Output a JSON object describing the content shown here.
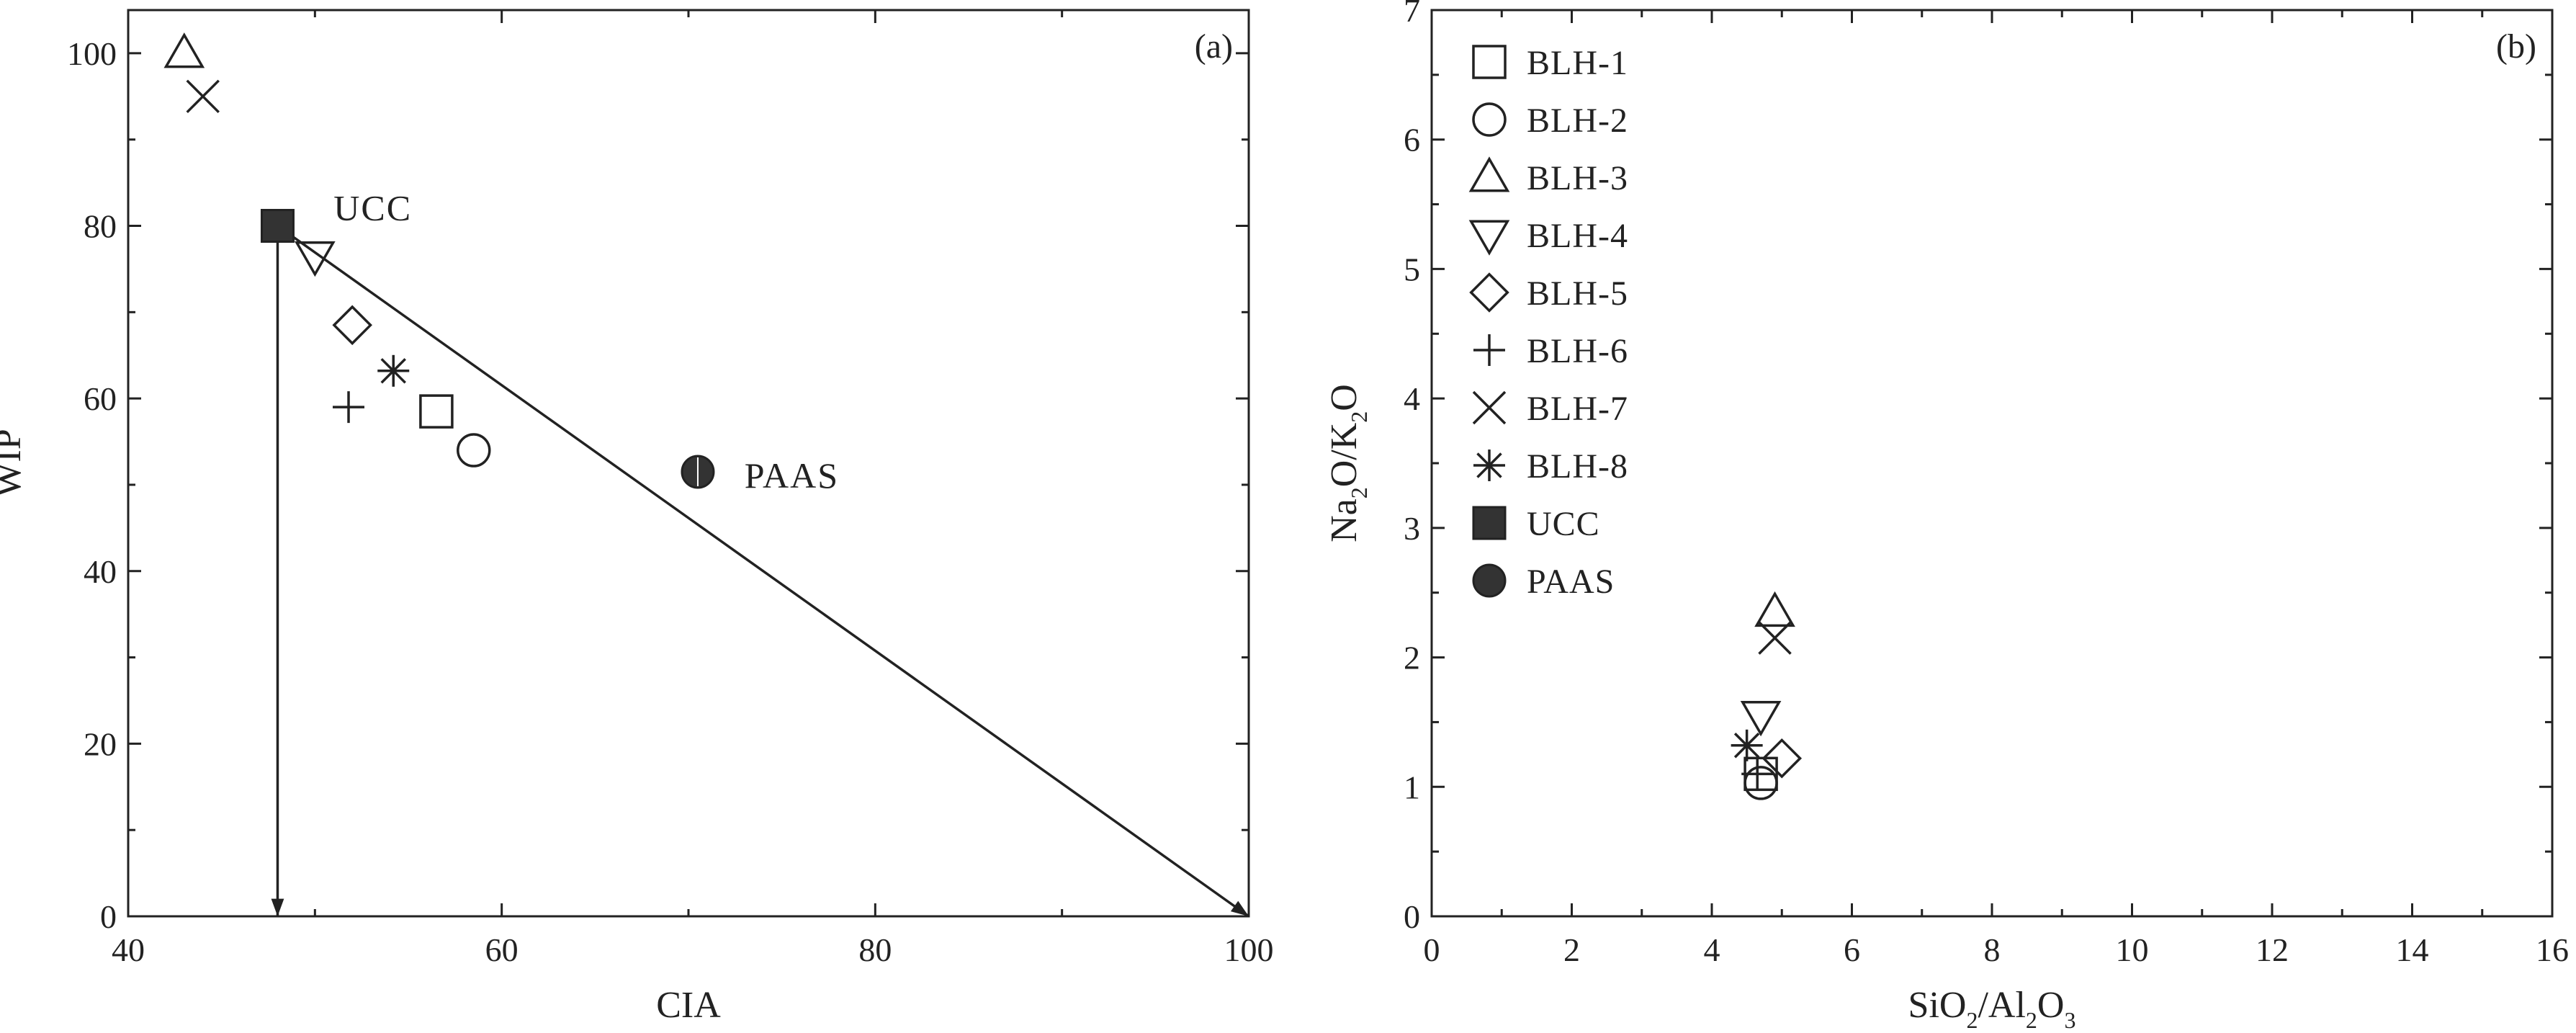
{
  "chart_data": [
    {
      "type": "scatter",
      "panel_label": "(a)",
      "xlabel": "CIA",
      "ylabel": "WIP",
      "xlim": [
        40,
        100
      ],
      "ylim": [
        0,
        105
      ],
      "x_ticks": [
        "40",
        "60",
        "80",
        "100"
      ],
      "y_ticks": [
        "0",
        "20",
        "40",
        "60",
        "80",
        "100"
      ],
      "points": [
        {
          "name": "BLH-1",
          "marker": "square",
          "x": 56.5,
          "y": 58.5
        },
        {
          "name": "BLH-2",
          "marker": "circle",
          "x": 58.5,
          "y": 54
        },
        {
          "name": "BLH-3",
          "marker": "triangle-up",
          "x": 43,
          "y": 100
        },
        {
          "name": "BLH-4",
          "marker": "triangle-down",
          "x": 50,
          "y": 76.5
        },
        {
          "name": "BLH-5",
          "marker": "diamond",
          "x": 52,
          "y": 68.5
        },
        {
          "name": "BLH-6",
          "marker": "plus",
          "x": 51.8,
          "y": 59
        },
        {
          "name": "BLH-7",
          "marker": "x",
          "x": 44,
          "y": 95
        },
        {
          "name": "BLH-8",
          "marker": "asterisk",
          "x": 54.2,
          "y": 63.2
        },
        {
          "name": "UCC",
          "marker": "square-filled",
          "x": 48,
          "y": 80
        },
        {
          "name": "PAAS",
          "marker": "circle-filled",
          "x": 70.5,
          "y": 51.5
        }
      ],
      "annotations": [
        {
          "text": "UCC",
          "x": 51,
          "y": 82
        },
        {
          "text": "PAAS",
          "x": 73,
          "y": 51
        }
      ],
      "trend_lines": [
        {
          "from": [
            48,
            80
          ],
          "to": [
            48,
            0
          ],
          "arrow": true
        },
        {
          "from": [
            48,
            80
          ],
          "to": [
            100,
            0
          ],
          "arrow": true
        }
      ]
    },
    {
      "type": "scatter",
      "panel_label": "(b)",
      "xlabel": "SiO2/Al2O3",
      "ylabel": "Na2O/K2O",
      "xlim": [
        0,
        16
      ],
      "ylim": [
        0,
        7
      ],
      "x_ticks": [
        "0",
        "2",
        "4",
        "6",
        "8",
        "10",
        "12",
        "14",
        "16"
      ],
      "y_ticks": [
        "0",
        "1",
        "2",
        "3",
        "4",
        "5",
        "6",
        "7"
      ],
      "points": [
        {
          "name": "BLH-1",
          "marker": "square",
          "x": 4.7,
          "y": 1.1
        },
        {
          "name": "BLH-2",
          "marker": "circle",
          "x": 4.7,
          "y": 1.03
        },
        {
          "name": "BLH-3",
          "marker": "triangle-up",
          "x": 4.9,
          "y": 2.35
        },
        {
          "name": "BLH-4",
          "marker": "triangle-down",
          "x": 4.7,
          "y": 1.55
        },
        {
          "name": "BLH-5",
          "marker": "diamond",
          "x": 5.0,
          "y": 1.22
        },
        {
          "name": "BLH-6",
          "marker": "plus",
          "x": 4.65,
          "y": 1.1
        },
        {
          "name": "BLH-7",
          "marker": "x",
          "x": 4.9,
          "y": 2.15
        },
        {
          "name": "BLH-8",
          "marker": "asterisk",
          "x": 4.5,
          "y": 1.32
        }
      ],
      "legend": {
        "position": "top-left",
        "entries": [
          {
            "label": "BLH-1",
            "marker": "square"
          },
          {
            "label": "BLH-2",
            "marker": "circle"
          },
          {
            "label": "BLH-3",
            "marker": "triangle-up"
          },
          {
            "label": "BLH-4",
            "marker": "triangle-down"
          },
          {
            "label": "BLH-5",
            "marker": "diamond"
          },
          {
            "label": "BLH-6",
            "marker": "plus"
          },
          {
            "label": "BLH-7",
            "marker": "x"
          },
          {
            "label": "BLH-8",
            "marker": "asterisk"
          },
          {
            "label": "UCC",
            "marker": "square-filled"
          },
          {
            "label": "PAAS",
            "marker": "circle-filled"
          }
        ]
      }
    }
  ]
}
